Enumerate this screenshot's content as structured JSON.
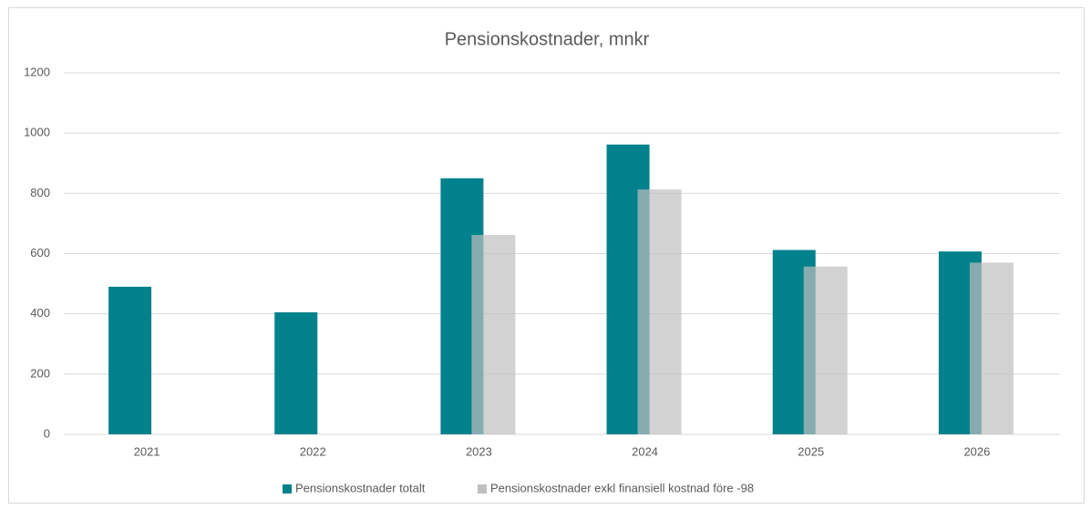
{
  "chart_data": {
    "type": "bar",
    "title": "Pensionskostnader,  mnkr",
    "categories": [
      "2021",
      "2022",
      "2023",
      "2024",
      "2025",
      "2026"
    ],
    "series": [
      {
        "name": "Pensionskostnader totalt",
        "color": "#00818c",
        "values": [
          490,
          405,
          850,
          962,
          612,
          607
        ]
      },
      {
        "name": "Pensionskostnader exkl finansiell kostnad före -98",
        "color": "#bfbfbf",
        "values": [
          null,
          null,
          662,
          813,
          557,
          570
        ]
      }
    ],
    "ylim": [
      0,
      1200
    ],
    "yticks": [
      0,
      200,
      400,
      600,
      800,
      1000,
      1200
    ],
    "grid": true,
    "legend": "bottom"
  }
}
